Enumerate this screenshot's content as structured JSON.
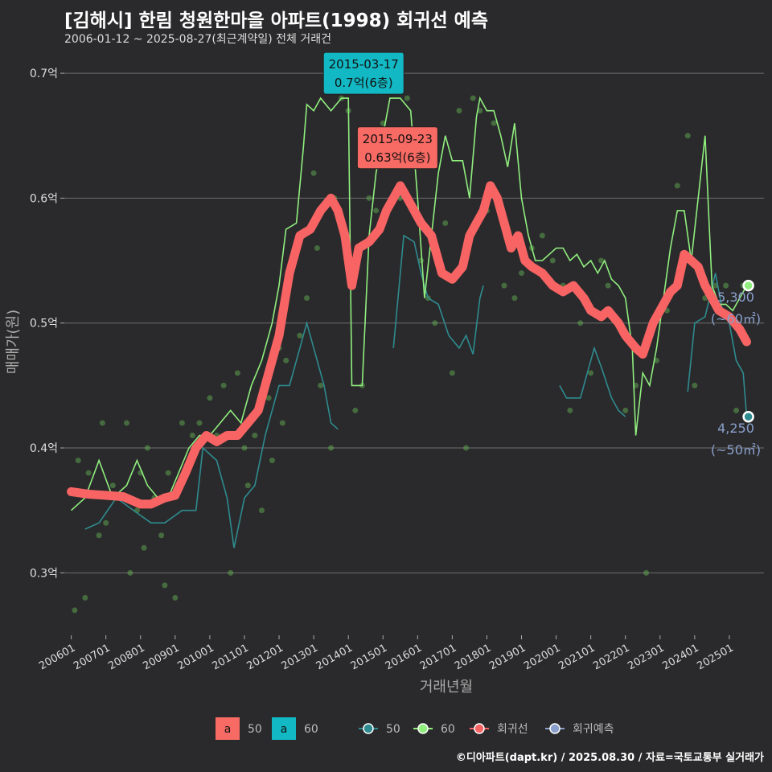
{
  "title": "[김해시] 한림 청원한마을 아파트(1998) 회귀선 예측",
  "subtitle": "2006-01-12 ~ 2025-08-27(최근계약일) 전체 거래건",
  "footer": "©디아파트(dapt.kr) / 2025.08.30 / 자료=국토교통부 실거래가",
  "colors": {
    "c50": "#2e8b8f",
    "c60": "#90ee7e",
    "trend": "#f86464",
    "forecast": "#8aa0cc",
    "label60_bg": "#12b8c4",
    "label50_bg": "#f86a64",
    "bg": "#2a2a2c",
    "grid": "#6e6e6e"
  },
  "chart_data": {
    "type": "line",
    "xlabel": "거래년월",
    "ylabel": "매매가(원)",
    "ylim": [
      0.25,
      0.72
    ],
    "yticks": [
      0.3,
      0.4,
      0.5,
      0.6,
      0.7
    ],
    "ytick_labels": [
      "0.3억",
      "0.4억",
      "0.5억",
      "0.6억",
      "0.7억"
    ],
    "xlim": [
      2005.8,
      2026.0
    ],
    "xticks": [
      2006,
      2007,
      2008,
      2009,
      2010,
      2011,
      2012,
      2013,
      2014,
      2015,
      2016,
      2017,
      2018,
      2019,
      2020,
      2021,
      2022,
      2023,
      2024,
      2025
    ],
    "xtick_labels": [
      "200601",
      "200701",
      "200801",
      "200901",
      "201001",
      "201101",
      "201201",
      "201301",
      "201401",
      "201501",
      "201601",
      "201701",
      "201801",
      "201901",
      "202001",
      "202101",
      "202201",
      "202301",
      "202401",
      "202501"
    ],
    "series": [
      {
        "name": "50",
        "points": [
          [
            2006.4,
            0.335
          ],
          [
            2006.8,
            0.34
          ],
          [
            2007.3,
            0.36
          ],
          [
            2007.8,
            0.35
          ],
          [
            2008.3,
            0.34
          ],
          [
            2008.7,
            0.34
          ],
          [
            2009.2,
            0.35
          ],
          [
            2009.6,
            0.35
          ],
          [
            2009.8,
            0.4
          ],
          [
            2010.2,
            0.39
          ],
          [
            2010.5,
            0.36
          ],
          [
            2010.7,
            0.32
          ],
          [
            2011.0,
            0.36
          ],
          [
            2011.3,
            0.37
          ],
          [
            2011.6,
            0.41
          ],
          [
            2012.0,
            0.45
          ],
          [
            2012.3,
            0.45
          ],
          [
            2012.6,
            0.48
          ],
          [
            2012.8,
            0.5
          ],
          [
            2013.0,
            0.48
          ],
          [
            2013.3,
            0.45
          ],
          [
            2013.5,
            0.42
          ],
          [
            2013.7,
            0.415
          ]
        ]
      },
      {
        "name": "50",
        "points": [
          [
            2015.3,
            0.48
          ],
          [
            2015.6,
            0.57
          ],
          [
            2015.9,
            0.565
          ],
          [
            2016.1,
            0.54
          ],
          [
            2016.3,
            0.52
          ],
          [
            2016.6,
            0.515
          ],
          [
            2016.9,
            0.49
          ],
          [
            2017.2,
            0.48
          ],
          [
            2017.4,
            0.49
          ],
          [
            2017.6,
            0.475
          ],
          [
            2017.8,
            0.52
          ],
          [
            2017.9,
            0.53
          ]
        ]
      },
      {
        "name": "50",
        "points": [
          [
            2020.1,
            0.45
          ],
          [
            2020.3,
            0.44
          ],
          [
            2020.7,
            0.44
          ],
          [
            2020.9,
            0.46
          ],
          [
            2021.1,
            0.48
          ],
          [
            2021.3,
            0.465
          ],
          [
            2021.6,
            0.44
          ],
          [
            2021.8,
            0.43
          ],
          [
            2022.0,
            0.425
          ]
        ]
      },
      {
        "name": "50",
        "points": [
          [
            2023.8,
            0.445
          ],
          [
            2024.0,
            0.5
          ],
          [
            2024.3,
            0.505
          ],
          [
            2024.6,
            0.54
          ],
          [
            2024.8,
            0.51
          ],
          [
            2025.0,
            0.5
          ],
          [
            2025.2,
            0.47
          ],
          [
            2025.4,
            0.46
          ],
          [
            2025.5,
            0.425
          ]
        ]
      },
      {
        "name": "60",
        "points": [
          [
            2006.0,
            0.35
          ],
          [
            2006.4,
            0.36
          ],
          [
            2006.8,
            0.39
          ],
          [
            2007.2,
            0.36
          ],
          [
            2007.6,
            0.37
          ],
          [
            2007.9,
            0.39
          ],
          [
            2008.2,
            0.37
          ],
          [
            2008.5,
            0.36
          ],
          [
            2008.8,
            0.36
          ],
          [
            2009.1,
            0.38
          ],
          [
            2009.4,
            0.4
          ],
          [
            2009.7,
            0.41
          ],
          [
            2010.0,
            0.41
          ],
          [
            2010.3,
            0.42
          ],
          [
            2010.6,
            0.43
          ],
          [
            2010.9,
            0.42
          ],
          [
            2011.2,
            0.45
          ],
          [
            2011.5,
            0.47
          ],
          [
            2011.8,
            0.5
          ],
          [
            2012.0,
            0.53
          ],
          [
            2012.2,
            0.575
          ],
          [
            2012.5,
            0.58
          ],
          [
            2012.7,
            0.64
          ],
          [
            2012.8,
            0.675
          ],
          [
            2013.0,
            0.67
          ],
          [
            2013.2,
            0.68
          ],
          [
            2013.5,
            0.67
          ],
          [
            2013.8,
            0.68
          ],
          [
            2014.0,
            0.68
          ],
          [
            2014.1,
            0.45
          ],
          [
            2014.4,
            0.45
          ],
          [
            2014.6,
            0.57
          ],
          [
            2014.8,
            0.62
          ],
          [
            2015.0,
            0.65
          ],
          [
            2015.2,
            0.68
          ],
          [
            2015.5,
            0.68
          ],
          [
            2015.8,
            0.67
          ],
          [
            2016.0,
            0.6
          ],
          [
            2016.2,
            0.52
          ],
          [
            2016.4,
            0.57
          ],
          [
            2016.6,
            0.62
          ],
          [
            2016.8,
            0.65
          ],
          [
            2017.0,
            0.63
          ],
          [
            2017.3,
            0.63
          ],
          [
            2017.5,
            0.6
          ],
          [
            2017.7,
            0.665
          ],
          [
            2017.8,
            0.68
          ],
          [
            2018.0,
            0.67
          ],
          [
            2018.2,
            0.67
          ],
          [
            2018.4,
            0.65
          ],
          [
            2018.6,
            0.625
          ],
          [
            2018.8,
            0.66
          ],
          [
            2019.0,
            0.6
          ],
          [
            2019.2,
            0.57
          ],
          [
            2019.4,
            0.55
          ],
          [
            2019.6,
            0.55
          ],
          [
            2019.8,
            0.555
          ],
          [
            2020.0,
            0.56
          ],
          [
            2020.2,
            0.56
          ],
          [
            2020.4,
            0.55
          ],
          [
            2020.6,
            0.555
          ],
          [
            2020.8,
            0.545
          ],
          [
            2021.0,
            0.55
          ],
          [
            2021.2,
            0.54
          ],
          [
            2021.4,
            0.55
          ],
          [
            2021.6,
            0.535
          ],
          [
            2021.8,
            0.53
          ],
          [
            2022.0,
            0.52
          ],
          [
            2022.2,
            0.48
          ],
          [
            2022.3,
            0.41
          ],
          [
            2022.5,
            0.46
          ],
          [
            2022.7,
            0.45
          ],
          [
            2022.9,
            0.48
          ],
          [
            2023.1,
            0.52
          ],
          [
            2023.3,
            0.56
          ],
          [
            2023.5,
            0.59
          ],
          [
            2023.7,
            0.59
          ],
          [
            2023.9,
            0.55
          ],
          [
            2024.1,
            0.6
          ],
          [
            2024.3,
            0.65
          ],
          [
            2024.5,
            0.53
          ],
          [
            2024.7,
            0.515
          ],
          [
            2024.9,
            0.515
          ],
          [
            2025.1,
            0.51
          ],
          [
            2025.3,
            0.52
          ],
          [
            2025.5,
            0.53
          ]
        ]
      }
    ],
    "trend": {
      "name": "회귀선",
      "points": [
        [
          2006.0,
          0.365
        ],
        [
          2006.5,
          0.363
        ],
        [
          2007.0,
          0.362
        ],
        [
          2007.5,
          0.361
        ],
        [
          2008.0,
          0.355
        ],
        [
          2008.3,
          0.355
        ],
        [
          2008.7,
          0.36
        ],
        [
          2009.0,
          0.362
        ],
        [
          2009.3,
          0.38
        ],
        [
          2009.6,
          0.4
        ],
        [
          2009.9,
          0.41
        ],
        [
          2010.2,
          0.405
        ],
        [
          2010.5,
          0.41
        ],
        [
          2010.8,
          0.41
        ],
        [
          2011.1,
          0.42
        ],
        [
          2011.4,
          0.43
        ],
        [
          2011.7,
          0.46
        ],
        [
          2012.0,
          0.49
        ],
        [
          2012.3,
          0.54
        ],
        [
          2012.6,
          0.57
        ],
        [
          2012.9,
          0.575
        ],
        [
          2013.2,
          0.59
        ],
        [
          2013.5,
          0.6
        ],
        [
          2013.7,
          0.59
        ],
        [
          2013.9,
          0.57
        ],
        [
          2014.1,
          0.53
        ],
        [
          2014.3,
          0.56
        ],
        [
          2014.6,
          0.565
        ],
        [
          2014.9,
          0.575
        ],
        [
          2015.1,
          0.59
        ],
        [
          2015.3,
          0.6
        ],
        [
          2015.5,
          0.61
        ],
        [
          2015.8,
          0.595
        ],
        [
          2016.1,
          0.58
        ],
        [
          2016.4,
          0.57
        ],
        [
          2016.7,
          0.54
        ],
        [
          2017.0,
          0.535
        ],
        [
          2017.3,
          0.545
        ],
        [
          2017.5,
          0.57
        ],
        [
          2017.7,
          0.58
        ],
        [
          2017.9,
          0.59
        ],
        [
          2018.1,
          0.61
        ],
        [
          2018.3,
          0.6
        ],
        [
          2018.5,
          0.58
        ],
        [
          2018.7,
          0.56
        ],
        [
          2018.9,
          0.57
        ],
        [
          2019.1,
          0.55
        ],
        [
          2019.3,
          0.545
        ],
        [
          2019.6,
          0.54
        ],
        [
          2019.9,
          0.53
        ],
        [
          2020.2,
          0.525
        ],
        [
          2020.5,
          0.53
        ],
        [
          2020.8,
          0.52
        ],
        [
          2021.0,
          0.51
        ],
        [
          2021.3,
          0.505
        ],
        [
          2021.5,
          0.51
        ],
        [
          2021.8,
          0.5
        ],
        [
          2022.0,
          0.49
        ],
        [
          2022.3,
          0.48
        ],
        [
          2022.5,
          0.475
        ],
        [
          2022.8,
          0.5
        ],
        [
          2023.0,
          0.51
        ],
        [
          2023.3,
          0.525
        ],
        [
          2023.5,
          0.53
        ],
        [
          2023.7,
          0.555
        ],
        [
          2023.9,
          0.55
        ],
        [
          2024.1,
          0.545
        ],
        [
          2024.3,
          0.53
        ],
        [
          2024.5,
          0.52
        ],
        [
          2024.7,
          0.51
        ],
        [
          2025.0,
          0.505
        ],
        [
          2025.3,
          0.495
        ],
        [
          2025.5,
          0.485
        ]
      ]
    },
    "scatter_points": [
      [
        2006.1,
        0.27
      ],
      [
        2006.2,
        0.39
      ],
      [
        2006.4,
        0.28
      ],
      [
        2006.5,
        0.38
      ],
      [
        2006.8,
        0.33
      ],
      [
        2006.9,
        0.42
      ],
      [
        2007.0,
        0.34
      ],
      [
        2007.2,
        0.37
      ],
      [
        2007.4,
        0.36
      ],
      [
        2007.6,
        0.42
      ],
      [
        2007.7,
        0.3
      ],
      [
        2007.9,
        0.35
      ],
      [
        2008.0,
        0.38
      ],
      [
        2008.1,
        0.32
      ],
      [
        2008.2,
        0.4
      ],
      [
        2008.4,
        0.36
      ],
      [
        2008.6,
        0.33
      ],
      [
        2008.7,
        0.29
      ],
      [
        2008.8,
        0.38
      ],
      [
        2009.0,
        0.28
      ],
      [
        2009.2,
        0.42
      ],
      [
        2009.5,
        0.41
      ],
      [
        2009.7,
        0.42
      ],
      [
        2010.0,
        0.44
      ],
      [
        2010.2,
        0.41
      ],
      [
        2010.4,
        0.45
      ],
      [
        2010.6,
        0.3
      ],
      [
        2010.8,
        0.46
      ],
      [
        2011.0,
        0.4
      ],
      [
        2011.1,
        0.37
      ],
      [
        2011.3,
        0.41
      ],
      [
        2011.5,
        0.35
      ],
      [
        2011.7,
        0.44
      ],
      [
        2011.8,
        0.39
      ],
      [
        2012.0,
        0.48
      ],
      [
        2012.1,
        0.42
      ],
      [
        2012.2,
        0.47
      ],
      [
        2012.4,
        0.55
      ],
      [
        2012.6,
        0.49
      ],
      [
        2012.8,
        0.52
      ],
      [
        2013.0,
        0.62
      ],
      [
        2013.1,
        0.56
      ],
      [
        2013.2,
        0.45
      ],
      [
        2013.4,
        0.69
      ],
      [
        2013.5,
        0.4
      ],
      [
        2013.6,
        0.6
      ],
      [
        2013.8,
        0.68
      ],
      [
        2014.0,
        0.67
      ],
      [
        2014.2,
        0.43
      ],
      [
        2014.4,
        0.45
      ],
      [
        2014.6,
        0.6
      ],
      [
        2014.8,
        0.59
      ],
      [
        2015.0,
        0.66
      ],
      [
        2015.2,
        0.63
      ],
      [
        2015.4,
        0.7
      ],
      [
        2015.5,
        0.6
      ],
      [
        2015.7,
        0.68
      ],
      [
        2015.9,
        0.64
      ],
      [
        2016.1,
        0.55
      ],
      [
        2016.3,
        0.52
      ],
      [
        2016.5,
        0.5
      ],
      [
        2016.8,
        0.58
      ],
      [
        2017.0,
        0.46
      ],
      [
        2017.2,
        0.67
      ],
      [
        2017.4,
        0.4
      ],
      [
        2017.6,
        0.68
      ],
      [
        2017.8,
        0.67
      ],
      [
        2018.0,
        0.59
      ],
      [
        2018.2,
        0.66
      ],
      [
        2018.5,
        0.53
      ],
      [
        2018.8,
        0.52
      ],
      [
        2019.0,
        0.54
      ],
      [
        2019.3,
        0.56
      ],
      [
        2019.6,
        0.57
      ],
      [
        2019.9,
        0.55
      ],
      [
        2020.2,
        0.53
      ],
      [
        2020.4,
        0.43
      ],
      [
        2020.7,
        0.5
      ],
      [
        2021.0,
        0.46
      ],
      [
        2021.3,
        0.55
      ],
      [
        2021.5,
        0.53
      ],
      [
        2021.8,
        0.5
      ],
      [
        2022.0,
        0.43
      ],
      [
        2022.3,
        0.45
      ],
      [
        2022.6,
        0.3
      ],
      [
        2022.9,
        0.47
      ],
      [
        2023.2,
        0.51
      ],
      [
        2023.5,
        0.61
      ],
      [
        2023.8,
        0.65
      ],
      [
        2024.0,
        0.45
      ],
      [
        2024.3,
        0.52
      ],
      [
        2024.6,
        0.53
      ],
      [
        2024.9,
        0.53
      ],
      [
        2025.2,
        0.43
      ],
      [
        2025.4,
        0.53
      ]
    ],
    "end_labels": [
      {
        "series": "60",
        "x": 2025.55,
        "y": 0.53,
        "value": "5,300",
        "area": "(~60㎡)"
      },
      {
        "series": "50",
        "x": 2025.55,
        "y": 0.425,
        "value": "4,250",
        "area": "(~50㎡)"
      }
    ],
    "annotations": [
      {
        "series": "60",
        "x": 2015.0,
        "y": 0.7,
        "date": "2015-03-17",
        "text": "0.7억(6층)"
      },
      {
        "series": "50",
        "x": 2015.7,
        "y": 0.63,
        "date": "2015-09-23",
        "text": "0.63억(6층)"
      }
    ],
    "legend": {
      "fill_items": [
        {
          "swatch": "a",
          "label": "50"
        },
        {
          "swatch": "a",
          "label": "60"
        }
      ],
      "line_items": [
        {
          "label": "50"
        },
        {
          "label": "60"
        },
        {
          "label": "회귀선"
        },
        {
          "label": "회귀예측"
        }
      ],
      "placement": "bottom"
    }
  }
}
